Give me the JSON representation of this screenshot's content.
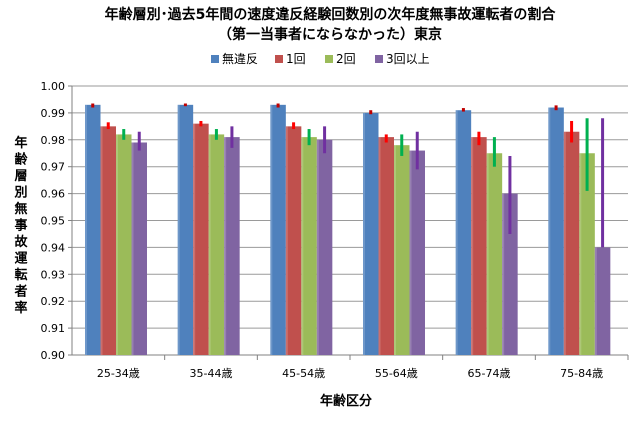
{
  "chart_data": {
    "type": "bar",
    "title": "年齢層別･過去5年間の速度違反経験回数別の次年度無事故運転者の割合",
    "subtitle": "（第一当事者にならなかった）東京",
    "xlabel": "年齢区分",
    "ylabel": "年齢層別無事故運転者率",
    "ylim": [
      0.9,
      1.0
    ],
    "yticks": [
      "0.90",
      "0.91",
      "0.92",
      "0.93",
      "0.94",
      "0.95",
      "0.96",
      "0.97",
      "0.98",
      "0.99",
      "1.00"
    ],
    "grid": true,
    "legend_position": "top-center",
    "categories": [
      "25-34歳",
      "35-44歳",
      "45-54歳",
      "55-64歳",
      "65-74歳",
      "75-84歳"
    ],
    "series": [
      {
        "name": "無違反",
        "color": "#4F81BD",
        "errorColor": "#C00000",
        "values": [
          0.993,
          0.993,
          0.993,
          0.99,
          0.991,
          0.992
        ],
        "err_low": [
          0.992,
          0.9925,
          0.992,
          0.9895,
          0.9905,
          0.991
        ],
        "err_high": [
          0.9935,
          0.9935,
          0.9935,
          0.991,
          0.9918,
          0.9928
        ]
      },
      {
        "name": "1回",
        "color": "#C0504D",
        "errorColor": "#FF0000",
        "values": [
          0.985,
          0.986,
          0.985,
          0.981,
          0.981,
          0.983
        ],
        "err_low": [
          0.984,
          0.985,
          0.984,
          0.979,
          0.978,
          0.979
        ],
        "err_high": [
          0.9865,
          0.987,
          0.9865,
          0.982,
          0.983,
          0.987
        ]
      },
      {
        "name": "2回",
        "color": "#9BBB59",
        "errorColor": "#00B050",
        "values": [
          0.982,
          0.982,
          0.981,
          0.978,
          0.975,
          0.975
        ],
        "err_low": [
          0.98,
          0.98,
          0.978,
          0.974,
          0.97,
          0.961
        ],
        "err_high": [
          0.984,
          0.984,
          0.984,
          0.982,
          0.981,
          0.988
        ]
      },
      {
        "name": "3回以上",
        "color": "#8064A2",
        "errorColor": "#7030A0",
        "values": [
          0.979,
          0.981,
          0.98,
          0.976,
          0.96,
          0.94
        ],
        "err_low": [
          0.976,
          0.977,
          0.975,
          0.969,
          0.945,
          0.94
        ],
        "err_high": [
          0.983,
          0.985,
          0.985,
          0.983,
          0.974,
          0.988
        ]
      }
    ]
  }
}
